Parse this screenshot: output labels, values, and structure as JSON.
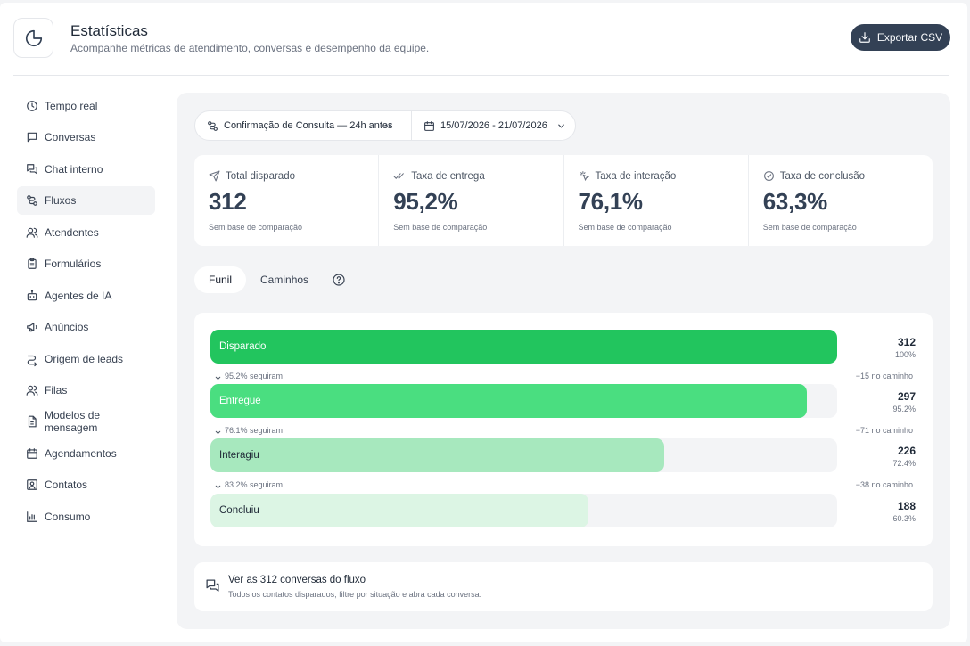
{
  "header": {
    "title": "Estatísticas",
    "subtitle": "Acompanhe métricas de atendimento, conversas e desempenho da equipe.",
    "logo_icon": "pie-chart-icon",
    "export_label": "Exportar CSV",
    "export_icon": "download-icon"
  },
  "sidebar": {
    "items": [
      {
        "label": "Tempo real",
        "icon": "clock-icon"
      },
      {
        "label": "Conversas",
        "icon": "message-icon"
      },
      {
        "label": "Chat interno",
        "icon": "messages-icon"
      },
      {
        "label": "Fluxos",
        "icon": "route-icon",
        "active": true
      },
      {
        "label": "Atendentes",
        "icon": "users-icon"
      },
      {
        "label": "Formulários",
        "icon": "clipboard-icon"
      },
      {
        "label": "Agentes de IA",
        "icon": "bot-icon"
      },
      {
        "label": "Anúncios",
        "icon": "megaphone-icon"
      },
      {
        "label": "Origem de leads",
        "icon": "split-icon"
      },
      {
        "label": "Filas",
        "icon": "users-icon"
      },
      {
        "label": "Modelos de mensagem",
        "icon": "file-text-icon"
      },
      {
        "label": "Agendamentos",
        "icon": "calendar-icon"
      },
      {
        "label": "Contatos",
        "icon": "contact-icon"
      },
      {
        "label": "Consumo",
        "icon": "bar-chart-icon"
      }
    ]
  },
  "filters": {
    "flow": "Confirmação de Consulta — 24h antes",
    "date_range": "15/07/2026 - 21/07/2026"
  },
  "kpis": [
    {
      "label": "Total disparado",
      "value": "312",
      "sub": "Sem base de comparação",
      "icon": "send-icon"
    },
    {
      "label": "Taxa de entrega",
      "value": "95,2%",
      "sub": "Sem base de comparação",
      "icon": "double-check-icon"
    },
    {
      "label": "Taxa de interação",
      "value": "76,1%",
      "sub": "Sem base de comparação",
      "icon": "pointer-click-icon"
    },
    {
      "label": "Taxa de conclusão",
      "value": "63,3%",
      "sub": "Sem base de comparação",
      "icon": "check-circle-icon"
    }
  ],
  "tabs": [
    {
      "label": "Funil",
      "active": true
    },
    {
      "label": "Caminhos",
      "active": false
    }
  ],
  "funnel": {
    "stages": [
      {
        "label": "Disparado",
        "count": "312",
        "pct": "100%",
        "fraction": 1.0,
        "color": "#22c55e",
        "text_color": "#ffffff"
      },
      {
        "label": "Entregue",
        "count": "297",
        "pct": "95.2%",
        "fraction": 0.952,
        "color": "#4ade80",
        "text_color": "#ffffff"
      },
      {
        "label": "Interagiu",
        "count": "226",
        "pct": "72.4%",
        "fraction": 0.724,
        "color": "#a7e8be",
        "text_color": "#1f2937"
      },
      {
        "label": "Concluiu",
        "count": "188",
        "pct": "60.3%",
        "fraction": 0.603,
        "color": "#dcf5e4",
        "text_color": "#1f2937"
      }
    ],
    "transitions": [
      {
        "follow": "95.2% seguiram",
        "drop": "−15 no caminho"
      },
      {
        "follow": "76.1% seguiram",
        "drop": "−71 no caminho"
      },
      {
        "follow": "83.2% seguiram",
        "drop": "−38 no caminho"
      }
    ]
  },
  "conversations": {
    "title": "Ver as 312 conversas do fluxo",
    "subtitle": "Todos os contatos disparados; filtre por situação e abra cada conversa.",
    "icon": "messages-icon"
  }
}
